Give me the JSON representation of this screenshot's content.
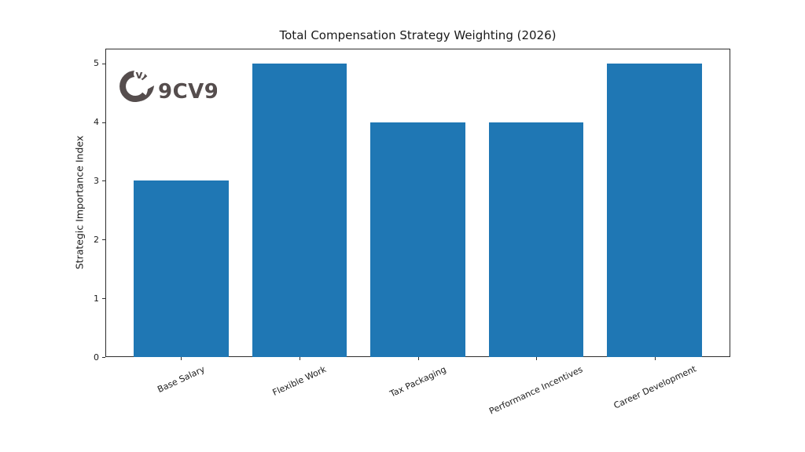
{
  "logo": {
    "brand": "9CV9",
    "monogram_letter": "v",
    "color": "#554d4d"
  },
  "chart_data": {
    "type": "bar",
    "title": "Total Compensation Strategy Weighting (2026)",
    "xlabel": "",
    "ylabel": "Strategic Importance Index",
    "categories": [
      "Base Salary",
      "Flexible Work",
      "Tax Packaging",
      "Performance Incentives",
      "Career Development"
    ],
    "values": [
      3,
      5,
      4,
      4,
      5
    ],
    "yticks": [
      0,
      1,
      2,
      3,
      4,
      5
    ],
    "ylim": [
      0,
      5.25
    ],
    "bar_color": "#1f77b4",
    "bar_width": 0.8,
    "xtick_rotation_deg": 25,
    "grid": false,
    "legend": "none",
    "background": "#ffffff"
  }
}
